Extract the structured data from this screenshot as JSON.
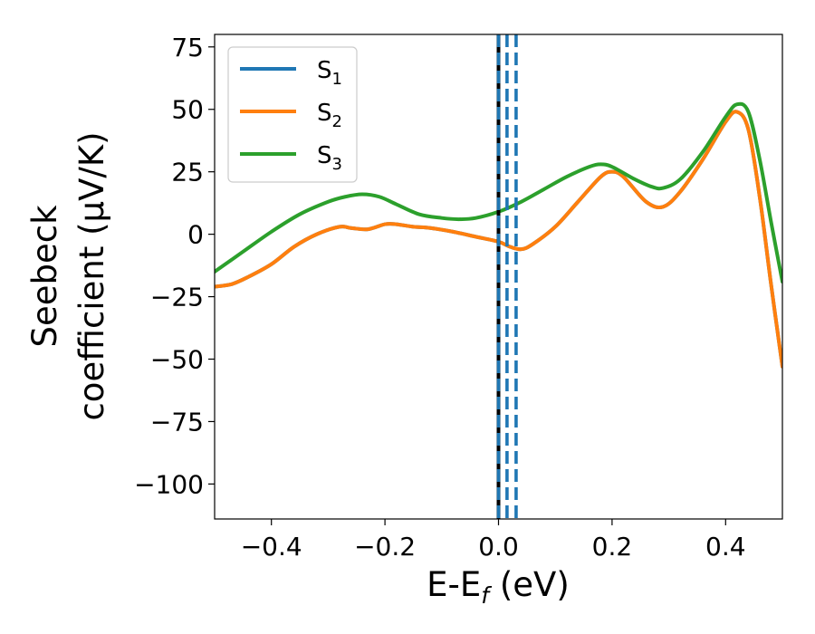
{
  "chart_data": {
    "type": "line",
    "xlabel": {
      "main": "E-E",
      "sub": "f",
      "suffix": " (eV)"
    },
    "ylabel": {
      "line1": "Seebeck",
      "line2": "coefficient  (μV/K)"
    },
    "xlim": [
      -0.5,
      0.5
    ],
    "ylim": [
      -114,
      80
    ],
    "xticks": [
      -0.4,
      -0.2,
      0.0,
      0.2,
      0.4
    ],
    "xtick_labels": [
      "−0.4",
      "−0.2",
      "0.0",
      "0.2",
      "0.4"
    ],
    "yticks": [
      75,
      50,
      25,
      0,
      -25,
      -50,
      -75,
      -100
    ],
    "ytick_labels": [
      "75",
      "50",
      "25",
      "0",
      "−25",
      "−50",
      "−75",
      "−100"
    ],
    "grid": false,
    "legend_position": "top-left",
    "vlines": [
      {
        "x": 0.0,
        "style": "solid",
        "color": "#000000"
      },
      {
        "x": 0.0,
        "style": "dashed",
        "color": "#1f77b4"
      },
      {
        "x": 0.015,
        "style": "dashed",
        "color": "#1f77b4"
      },
      {
        "x": 0.031,
        "style": "dashed",
        "color": "#1f77b4"
      }
    ],
    "series": [
      {
        "name": {
          "main": "S",
          "sub": "1"
        },
        "color": "#1f77b4",
        "x": [
          -0.5,
          -0.47,
          -0.44,
          -0.4,
          -0.36,
          -0.32,
          -0.28,
          -0.26,
          -0.23,
          -0.2,
          -0.18,
          -0.15,
          -0.12,
          -0.08,
          -0.04,
          0.0,
          0.02,
          0.04,
          0.06,
          0.1,
          0.14,
          0.18,
          0.2,
          0.22,
          0.26,
          0.29,
          0.32,
          0.36,
          0.4,
          0.42,
          0.44,
          0.46,
          0.48,
          0.5
        ],
        "y": [
          -21,
          -20,
          -17,
          -12,
          -5,
          0,
          3,
          2.5,
          2,
          4,
          4,
          3,
          2.5,
          1,
          -1,
          -3,
          -5,
          -6,
          -4,
          3,
          13,
          23,
          25,
          23,
          13,
          11,
          17,
          30,
          45,
          49,
          42,
          15,
          -20,
          -53
        ]
      },
      {
        "name": {
          "main": "S",
          "sub": "2"
        },
        "color": "#ff7f0e",
        "x": [
          -0.5,
          -0.47,
          -0.44,
          -0.4,
          -0.36,
          -0.32,
          -0.28,
          -0.26,
          -0.23,
          -0.2,
          -0.18,
          -0.15,
          -0.12,
          -0.08,
          -0.04,
          0.0,
          0.02,
          0.04,
          0.06,
          0.1,
          0.14,
          0.18,
          0.2,
          0.22,
          0.26,
          0.29,
          0.32,
          0.36,
          0.4,
          0.42,
          0.44,
          0.46,
          0.48,
          0.5
        ],
        "y": [
          -21,
          -20,
          -17,
          -12,
          -5,
          0,
          3,
          2.5,
          2,
          4,
          4,
          3,
          2.5,
          1,
          -1,
          -3,
          -5,
          -6,
          -4,
          3,
          13,
          23,
          25,
          23,
          13,
          11,
          17,
          30,
          45,
          49,
          42,
          15,
          -20,
          -53
        ]
      },
      {
        "name": {
          "main": "S",
          "sub": "3"
        },
        "color": "#2ca02c",
        "x": [
          -0.5,
          -0.45,
          -0.4,
          -0.35,
          -0.3,
          -0.27,
          -0.24,
          -0.21,
          -0.18,
          -0.14,
          -0.1,
          -0.07,
          -0.04,
          0.0,
          0.04,
          0.08,
          0.12,
          0.16,
          0.18,
          0.2,
          0.24,
          0.27,
          0.29,
          0.32,
          0.36,
          0.4,
          0.42,
          0.44,
          0.46,
          0.48,
          0.5
        ],
        "y": [
          -15,
          -7,
          1,
          8,
          13,
          15,
          16,
          15,
          12,
          8,
          6.5,
          6,
          6.5,
          9,
          13,
          18,
          23,
          27,
          28,
          27,
          22,
          19,
          18.5,
          22,
          33,
          47,
          52,
          49,
          30,
          5,
          -19
        ]
      }
    ]
  }
}
